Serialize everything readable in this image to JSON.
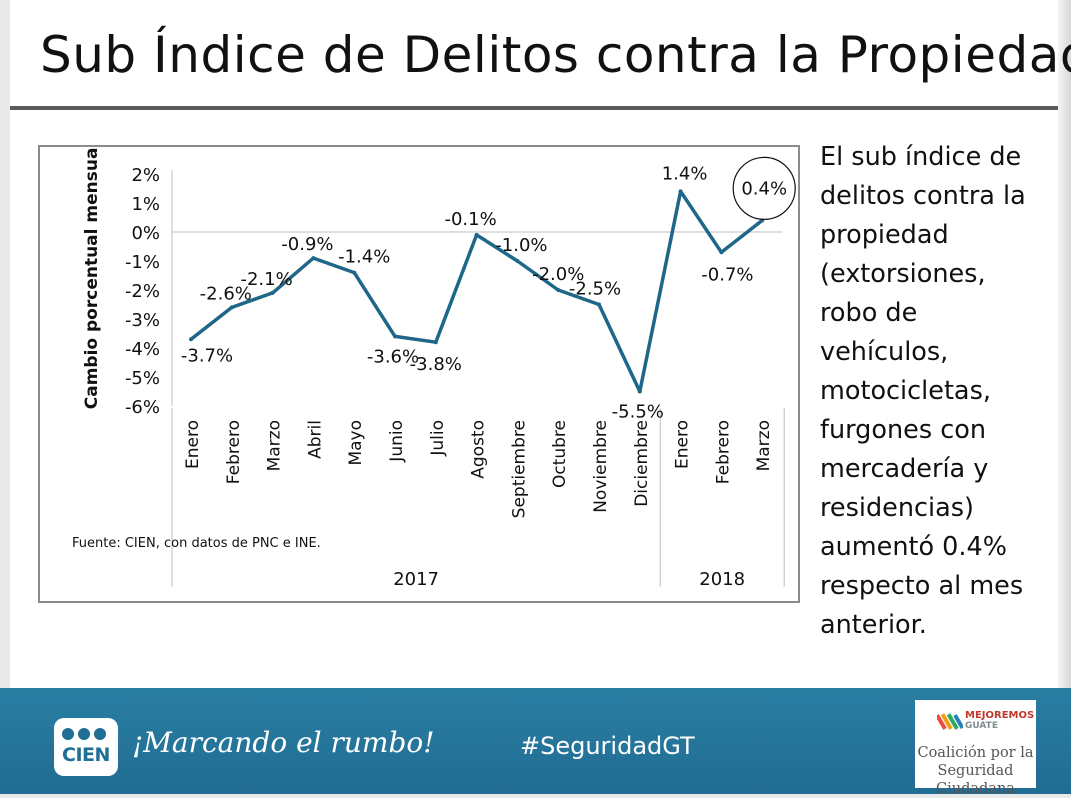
{
  "title": "Sub Índice de Delitos contra la Propiedad",
  "description": "El sub índice de delitos contra la propiedad (extorsiones, robo de vehículos, motocicletas, furgones con mercadería y residencias) aumentó 0.4% respecto al mes anterior.",
  "footer": {
    "logo_text": "CIEN",
    "slogan": "¡Marcando el rumbo!",
    "hashtag": "#SeguridadGT",
    "partner_brand_1": "MEJOREMOS",
    "partner_brand_2": "GUATE",
    "partner_name_1": "Coalición por la",
    "partner_name_2": "Seguridad Ciudadana"
  },
  "colors": {
    "line": "#1f6788",
    "footer": "#2577a0",
    "text": "#111111"
  },
  "chart_data": {
    "type": "line",
    "title": "",
    "ylabel": "Cambio porcentual mensual",
    "xlabel": "",
    "source": "Fuente: CIEN, con datos de PNC e INE.",
    "ylim": [
      -6,
      2
    ],
    "yticks": [
      2,
      1,
      0,
      -1,
      -2,
      -3,
      -4,
      -5,
      -6
    ],
    "ytick_labels": [
      "2%",
      "1%",
      "0%",
      "-1%",
      "-2%",
      "-3%",
      "-4%",
      "-5%",
      "-6%"
    ],
    "categories": [
      "Enero",
      "Febrero",
      "Marzo",
      "Abril",
      "Mayo",
      "Junio",
      "Julio",
      "Agosto",
      "Septiembre",
      "Octubre",
      "Noviembre",
      "Diciembre",
      "Enero",
      "Febrero",
      "Marzo"
    ],
    "groups": [
      {
        "label": "2017",
        "count": 12
      },
      {
        "label": "2018",
        "count": 3
      }
    ],
    "series": [
      {
        "name": "Sub índice delitos contra la propiedad",
        "values": [
          -3.7,
          -2.6,
          -2.1,
          -0.9,
          -1.4,
          -3.6,
          -3.8,
          -0.1,
          -1.0,
          -2.0,
          -2.5,
          -5.5,
          1.4,
          -0.7,
          0.4
        ],
        "labels": [
          "-3.7%",
          "-2.6%",
          "-2.1%",
          "-0.9%",
          "-1.4%",
          "-3.6%",
          "-3.8%",
          "-0.1%",
          "-1.0%",
          "-2.0%",
          "-2.5%",
          "-5.5%",
          "1.4%",
          "-0.7%",
          "0.4%"
        ]
      }
    ],
    "highlight_index": 14
  }
}
